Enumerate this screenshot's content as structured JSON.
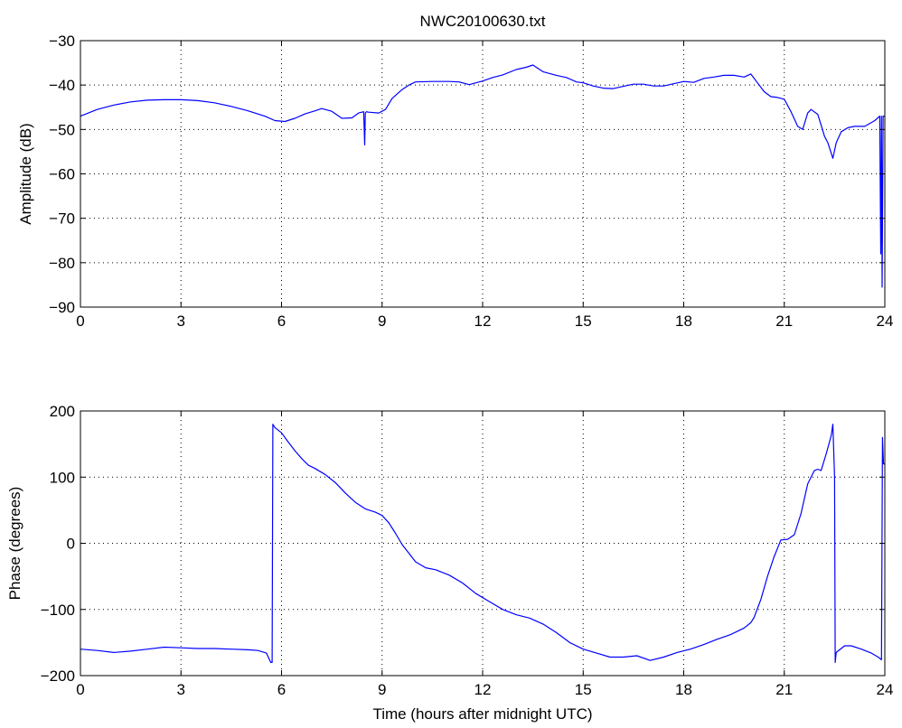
{
  "chart_data": [
    {
      "type": "line",
      "title": "NWC20100630.txt",
      "xlabel": "",
      "ylabel": "Amplitude (dB)",
      "xlim": [
        0,
        24
      ],
      "ylim": [
        -90,
        -30
      ],
      "xticks": [
        0,
        3,
        6,
        9,
        12,
        15,
        18,
        21,
        24
      ],
      "xtick_labels": [
        "0",
        "3",
        "6",
        "9",
        "12",
        "15",
        "18",
        "21",
        "24"
      ],
      "yticks": [
        -90,
        -80,
        -70,
        -60,
        -50,
        -40,
        -30
      ],
      "ytick_labels": [
        "−90",
        "−80",
        "−70",
        "−60",
        "−50",
        "−40",
        "−30"
      ],
      "grid": true,
      "color": "#0000ff",
      "series": [
        {
          "x": [
            0,
            0.5,
            1,
            1.5,
            2,
            2.5,
            3,
            3.5,
            4,
            4.5,
            5,
            5.5,
            5.8,
            6.1,
            6.4,
            6.7,
            7,
            7.2,
            7.5,
            7.8,
            8.1,
            8.3,
            8.45,
            8.48,
            8.5,
            8.53,
            8.6,
            8.9,
            9.1,
            9.3,
            9.6,
            9.8,
            10,
            10.5,
            11,
            11.3,
            11.6,
            12,
            12.3,
            12.6,
            13,
            13.3,
            13.5,
            13.8,
            14.2,
            14.5,
            14.8,
            15,
            15.3,
            15.6,
            15.9,
            16.2,
            16.5,
            16.8,
            17.1,
            17.4,
            17.7,
            18,
            18.3,
            18.6,
            18.9,
            19.2,
            19.5,
            19.8,
            20,
            20.2,
            20.4,
            20.6,
            20.8,
            21,
            21.2,
            21.4,
            21.55,
            21.7,
            21.8,
            22,
            22.1,
            22.2,
            22.3,
            22.45,
            22.55,
            22.7,
            22.9,
            23.1,
            23.4,
            23.7,
            23.85,
            23.88,
            23.9,
            23.92,
            23.95,
            24
          ],
          "y": [
            -47,
            -45.5,
            -44.5,
            -43.8,
            -43.4,
            -43.3,
            -43.3,
            -43.5,
            -44,
            -44.8,
            -45.8,
            -47,
            -48,
            -48.2,
            -47.5,
            -46.5,
            -45.8,
            -45.3,
            -45.9,
            -47.5,
            -47.4,
            -46.3,
            -46,
            -53.5,
            -46.3,
            -46,
            -46.1,
            -46.3,
            -45.5,
            -43,
            -41,
            -40,
            -39.3,
            -39.2,
            -39.2,
            -39.3,
            -39.9,
            -39.1,
            -38.3,
            -37.7,
            -36.5,
            -36,
            -35.5,
            -37,
            -37.8,
            -38.3,
            -39.3,
            -39.5,
            -40.2,
            -40.7,
            -40.8,
            -40.3,
            -39.8,
            -39.8,
            -40.2,
            -40.2,
            -39.7,
            -39.2,
            -39.4,
            -38.5,
            -38.2,
            -37.8,
            -37.8,
            -38.2,
            -37.5,
            -39.5,
            -41.5,
            -42.6,
            -42.8,
            -43.2,
            -46,
            -49.3,
            -50,
            -46.3,
            -45.5,
            -46.6,
            -49,
            -51.5,
            -53,
            -56.5,
            -53,
            -50.5,
            -49.6,
            -49.3,
            -49.3,
            -48,
            -47,
            -78,
            -47,
            -85.5,
            -47,
            -47
          ]
        }
      ]
    },
    {
      "type": "line",
      "title": "",
      "xlabel": "Time (hours after midnight UTC)",
      "ylabel": "Phase (degrees)",
      "xlim": [
        0,
        24
      ],
      "ylim": [
        -200,
        200
      ],
      "xticks": [
        0,
        3,
        6,
        9,
        12,
        15,
        18,
        21,
        24
      ],
      "xtick_labels": [
        "0",
        "3",
        "6",
        "9",
        "12",
        "15",
        "18",
        "21",
        "24"
      ],
      "yticks": [
        -200,
        -100,
        0,
        100,
        200
      ],
      "ytick_labels": [
        "−200",
        "−100",
        "0",
        "100",
        "200"
      ],
      "grid": true,
      "color": "#0000ff",
      "series": [
        {
          "x": [
            0,
            0.5,
            1,
            1.5,
            2,
            2.5,
            3,
            3.5,
            4,
            4.5,
            5,
            5.3,
            5.55,
            5.68,
            5.72,
            5.74,
            5.8,
            6,
            6.2,
            6.4,
            6.6,
            6.8,
            7,
            7.3,
            7.6,
            7.9,
            8.2,
            8.5,
            8.8,
            9,
            9.2,
            9.4,
            9.6,
            9.8,
            10,
            10.3,
            10.6,
            11,
            11.4,
            11.8,
            12.2,
            12.6,
            13,
            13.4,
            13.8,
            14.2,
            14.6,
            15,
            15.4,
            15.8,
            16.2,
            16.6,
            17,
            17.4,
            17.8,
            18.2,
            18.6,
            19,
            19.4,
            19.8,
            20,
            20.1,
            20.3,
            20.5,
            20.7,
            20.9,
            21.1,
            21.3,
            21.5,
            21.7,
            21.9,
            22,
            22.1,
            22.25,
            22.4,
            22.45,
            22.5,
            22.52,
            22.55,
            22.8,
            23,
            23.3,
            23.6,
            23.8,
            23.9,
            23.93,
            23.96,
            24
          ],
          "y": [
            -160,
            -162,
            -165,
            -163,
            -160,
            -157,
            -158,
            -159,
            -159,
            -160,
            -161,
            -162,
            -166,
            -180,
            -180,
            180,
            175,
            167,
            153,
            140,
            128,
            118,
            113,
            104,
            92,
            76,
            62,
            52,
            47,
            42,
            31,
            15,
            -2,
            -15,
            -28,
            -37,
            -40,
            -48,
            -60,
            -76,
            -88,
            -100,
            -108,
            -113,
            -122,
            -135,
            -150,
            -160,
            -166,
            -172,
            -172,
            -170,
            -177,
            -172,
            -165,
            -160,
            -153,
            -145,
            -138,
            -128,
            -120,
            -112,
            -85,
            -50,
            -20,
            5,
            6,
            13,
            45,
            90,
            110,
            112,
            110,
            135,
            163,
            180,
            100,
            -180,
            -165,
            -155,
            -155,
            -160,
            -166,
            -172,
            -176,
            160,
            120,
            120
          ]
        }
      ]
    }
  ]
}
